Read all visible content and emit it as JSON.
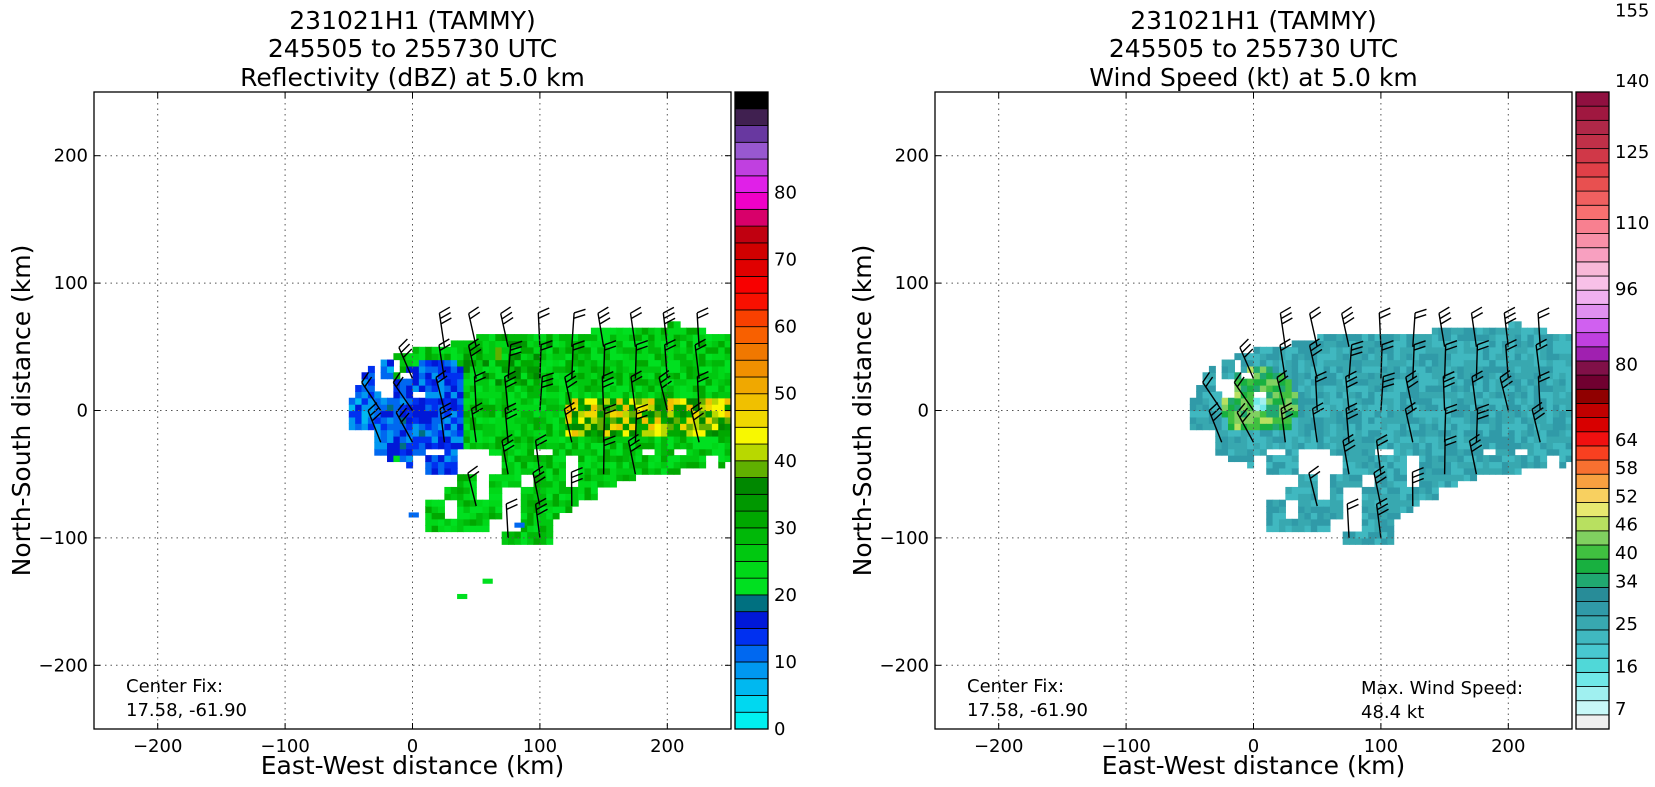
{
  "chart_data": [
    {
      "type": "heatmap",
      "title_lines": [
        "231021H1 (TAMMY)",
        "245505 to 255730 UTC",
        "Reflectivity (dBZ) at 5.0 km"
      ],
      "xlabel": "East-West distance (km)",
      "ylabel": "North-South distance (km)",
      "xlim": [
        -250,
        250
      ],
      "ylim": [
        -250,
        250
      ],
      "xticks": [
        -200,
        -100,
        0,
        100,
        200
      ],
      "yticks": [
        -200,
        -100,
        0,
        100,
        200
      ],
      "xtick_labels": [
        "−200",
        "−100",
        "0",
        "100",
        "200"
      ],
      "ytick_labels": [
        "−200",
        "−100",
        "0",
        "100",
        "200"
      ],
      "grid": true,
      "colorbar": {
        "min": 0,
        "max": 80,
        "step": 2.5,
        "ticks": [
          0,
          10,
          20,
          30,
          40,
          50,
          60,
          70,
          80
        ],
        "tick_labels": [
          "0",
          "10",
          "20",
          "30",
          "40",
          "50",
          "60",
          "70",
          "80"
        ],
        "colors": [
          "#00f0f0",
          "#00d8f0",
          "#00b8f0",
          "#0098f0",
          "#0068f0",
          "#0030f0",
          "#0018d8",
          "#007080",
          "#00e020",
          "#00d818",
          "#00c810",
          "#00b808",
          "#00a800",
          "#009800",
          "#008800",
          "#60b000",
          "#b8d800",
          "#f8f800",
          "#f0d800",
          "#f0c000",
          "#f0a800",
          "#f09000",
          "#f07800",
          "#f86000",
          "#f84000",
          "#f81000",
          "#f80000",
          "#e00000",
          "#d00000",
          "#c00010",
          "#d8006a",
          "#f000c8",
          "#e020e8",
          "#c040e0",
          "#9858d0",
          "#6838a0",
          "#402050",
          "#000000"
        ]
      },
      "annotation_lines": [
        "Center Fix:",
        "17.58, -61.90"
      ]
    },
    {
      "type": "heatmap",
      "title_lines": [
        "231021H1 (TAMMY)",
        "245505 to 255730 UTC",
        "Wind Speed (kt) at 5.0 km"
      ],
      "xlabel": "East-West distance (km)",
      "ylabel": "North-South distance (km)",
      "xlim": [
        -250,
        250
      ],
      "ylim": [
        -250,
        250
      ],
      "xticks": [
        -200,
        -100,
        0,
        100,
        200
      ],
      "yticks": [
        -200,
        -100,
        0,
        100,
        200
      ],
      "xtick_labels": [
        "−200",
        "−100",
        "0",
        "100",
        "200"
      ],
      "ytick_labels": [
        "−200",
        "−100",
        "0",
        "100",
        "200"
      ],
      "grid": true,
      "colorbar": {
        "min": 4,
        "max": 160,
        "step": 3,
        "ticks": [
          7,
          16,
          25,
          34,
          40,
          46,
          52,
          58,
          64,
          80,
          96,
          110,
          125,
          140,
          155
        ],
        "tick_labels": [
          "7",
          "16",
          "25",
          "34",
          "40",
          "46",
          "52",
          "58",
          "64",
          "80",
          "96",
          "110",
          "125",
          "140",
          "155"
        ],
        "colors": [
          "#f0f0f0",
          "#c8f8f8",
          "#a0f0f0",
          "#70e8e8",
          "#50d8d8",
          "#48c8d0",
          "#40b8c0",
          "#38a8b0",
          "#309aa8",
          "#288c98",
          "#20a870",
          "#18b040",
          "#40c040",
          "#80d060",
          "#b8e060",
          "#e8e870",
          "#f8d060",
          "#f8a040",
          "#f87030",
          "#f84020",
          "#f01010",
          "#d80000",
          "#c00000",
          "#900000",
          "#700030",
          "#801048",
          "#a020b0",
          "#c040e0",
          "#d060f0",
          "#e090f0",
          "#f0b0f0",
          "#f8c0e8",
          "#f8b8d8",
          "#f8a0c0",
          "#f890a8",
          "#f88090",
          "#f87070",
          "#f06060",
          "#e85050",
          "#e04048",
          "#d03848",
          "#c03048",
          "#b02848",
          "#a01840",
          "#901040"
        ]
      },
      "annotation_lines": [
        "Center Fix:",
        "17.58, -61.90"
      ],
      "annotation_right_lines": [
        "Max. Wind Speed:",
        "48.4 kt"
      ]
    }
  ]
}
